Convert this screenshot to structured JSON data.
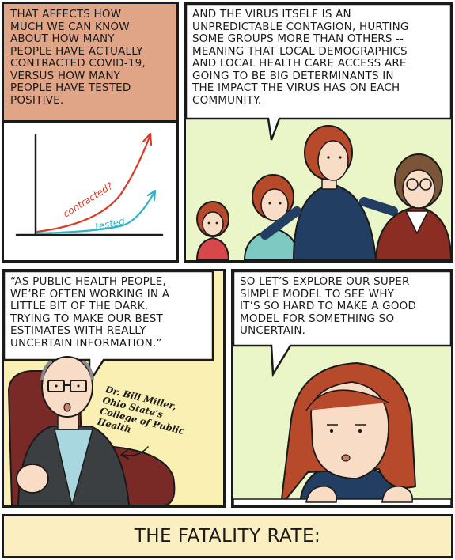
{
  "panel1": {
    "caption": "THAT AFFECTS HOW\nMUCH WE CAN KNOW\nABOUT HOW MANY\nPEOPLE HAVE ACTUALLY\nCONTRACTED COVID-19,\nVERSUS HOW MANY\nPEOPLE HAVE TESTED\nPOSITIVE.",
    "line_labels": {
      "contracted": "contracted?",
      "tested": "tested"
    },
    "colors": {
      "contracted": "#d93a26",
      "tested": "#2bb3c8",
      "caption_bg": "#e0a587"
    }
  },
  "panel2": {
    "speech": "AND THE VIRUS ITSELF IS AN\nUNPREDICTABLE CONTAGION, HURTING\nSOME GROUPS MORE THAN OTHERS --\nMEANING THAT LOCAL DEMOGRAPHICS\nAND LOCAL HEALTH CARE ACCESS ARE\nGOING TO BE BIG DETERMINANTS IN\nTHE IMPACT THE VIRUS HAS ON EACH\nCOMMUNITY.",
    "background": "#eaf5c8"
  },
  "panel3": {
    "speech": "“AS PUBLIC HEALTH PEOPLE,\nWE’RE OFTEN WORKING IN A\nLITTLE BIT OF THE DARK,\nTRYING TO MAKE OUR BEST\nESTIMATES WITH REALLY\nUNCERTAIN INFORMATION.”",
    "annotation": "Dr. Bill Miller,\nOhio State's\nCollege of Public\nHealth",
    "background": "#fbf0b3"
  },
  "panel4": {
    "speech": "SO LET’S EXPLORE OUR SUPER\nSIMPLE MODEL TO SEE WHY\nIT’S SO HARD TO MAKE A GOOD\nMODEL FOR SOMETHING SO\nUNCERTAIN.",
    "background": "#eaf5c8"
  },
  "banner": {
    "text": "THE FATALITY RATE:",
    "background": "#fbeec0"
  }
}
